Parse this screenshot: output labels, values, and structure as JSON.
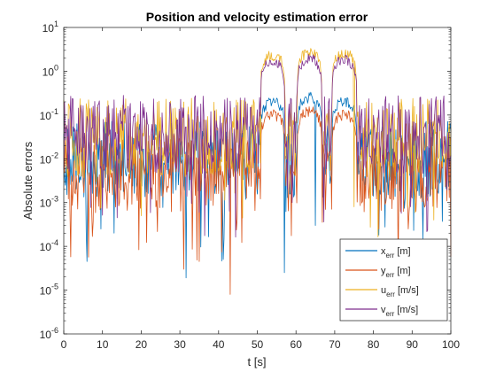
{
  "chart_data": {
    "type": "line",
    "title": "Position and velocity estimation error",
    "xlabel": "t [s]",
    "ylabel": "Absolute errors",
    "xlim": [
      0,
      100
    ],
    "ylim": [
      1e-06,
      10
    ],
    "yscale": "log",
    "grid": false,
    "legend_position": "bottom-right",
    "x_ticks": [
      0,
      10,
      20,
      30,
      40,
      50,
      60,
      70,
      80,
      90,
      100
    ],
    "y_ticks": [
      1e-06,
      1e-05,
      0.0001,
      0.001,
      0.01,
      0.1,
      1,
      10
    ],
    "y_tick_exponents": [
      "-6",
      "-5",
      "-4",
      "-3",
      "-2",
      "-1",
      "0",
      "1"
    ],
    "y_tick_base": "10",
    "sample_step": 0.2,
    "series": [
      {
        "name": "x",
        "subscript": "err",
        "unit": " [m]",
        "color": "#0072BD",
        "baseline": 0.015,
        "burst_peaks": [
          0.2,
          0.25,
          0.2
        ],
        "burst_centers": [
          54,
          63.5,
          72.5
        ],
        "burst_halfwidth": 3.2,
        "dips": [
          [
            6,
            4.5e-05
          ],
          [
            13,
            0.0002
          ],
          [
            57,
            2.5e-05
          ],
          [
            65,
            0.0003
          ]
        ]
      },
      {
        "name": "y",
        "subscript": "err",
        "unit": " [m]",
        "color": "#D95319",
        "baseline": 0.008,
        "burst_peaks": [
          0.1,
          0.12,
          0.1
        ],
        "burst_centers": [
          54,
          63.5,
          72.5
        ],
        "burst_halfwidth": 3.2,
        "dips": [
          [
            31,
            3e-05
          ],
          [
            43,
            8e-06
          ],
          [
            89,
            0.00025
          ]
        ]
      },
      {
        "name": "u",
        "subscript": "err",
        "unit": " [m/s]",
        "color": "#EDB120",
        "baseline": 0.05,
        "burst_peaks": [
          2.3,
          2.6,
          2.5
        ],
        "burst_centers": [
          54,
          63.5,
          72.5
        ],
        "burst_halfwidth": 3.2,
        "dips": [
          [
            20,
            0.0005
          ],
          [
            75,
            0.0008
          ]
        ]
      },
      {
        "name": "v",
        "subscript": "err",
        "unit": " [m/s]",
        "color": "#7E2F8E",
        "baseline": 0.06,
        "burst_peaks": [
          1.6,
          1.9,
          1.8
        ],
        "burst_centers": [
          54,
          63.5,
          72.5
        ],
        "burst_halfwidth": 3.2,
        "dips": [
          [
            35,
            0.0006
          ],
          [
            59,
            0.001
          ]
        ]
      }
    ]
  }
}
